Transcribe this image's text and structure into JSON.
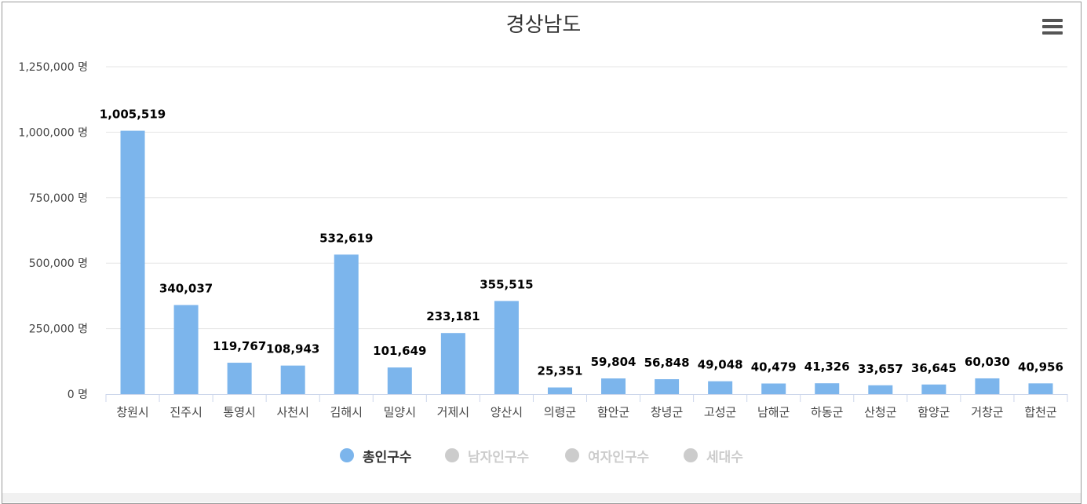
{
  "title": "경상남도",
  "menu_icon": "hamburger-menu-icon",
  "colors": {
    "bar": "#7cb5ec",
    "grid": "#e6e6e6",
    "axis": "#ccd6eb",
    "label": "#000000",
    "tick": "#444444",
    "legend_inactive": "#cccccc"
  },
  "chart_data": {
    "type": "bar",
    "title": "경상남도",
    "categories": [
      "창원시",
      "진주시",
      "통영시",
      "사천시",
      "김해시",
      "밀양시",
      "거제시",
      "양산시",
      "의령군",
      "함안군",
      "창녕군",
      "고성군",
      "남해군",
      "하동군",
      "산청군",
      "함양군",
      "거창군",
      "합천군"
    ],
    "series": [
      {
        "name": "총인구수",
        "visible": true,
        "values": [
          1005519,
          340037,
          119767,
          108943,
          532619,
          101649,
          233181,
          355515,
          25351,
          59804,
          56848,
          49048,
          40479,
          41326,
          33657,
          36645,
          60030,
          40956
        ],
        "value_labels": [
          "1,005,519",
          "340,037",
          "119,767",
          "108,943",
          "532,619",
          "101,649",
          "233,181",
          "355,515",
          "25,351",
          "59,804",
          "56,848",
          "49,048",
          "40,479",
          "41,326",
          "33,657",
          "36,645",
          "60,030",
          "40,956"
        ]
      },
      {
        "name": "남자인구수",
        "visible": false
      },
      {
        "name": "여자인구수",
        "visible": false
      },
      {
        "name": "세대수",
        "visible": false
      }
    ],
    "ylim": [
      0,
      1250000
    ],
    "yticks": [
      0,
      250000,
      500000,
      750000,
      1000000,
      1250000
    ],
    "ytick_labels": [
      "0 명",
      "250,000 명",
      "500,000 명",
      "750,000 명",
      "1,000,000 명",
      "1,250,000 명"
    ],
    "grid": true,
    "legend_position": "bottom-center"
  }
}
